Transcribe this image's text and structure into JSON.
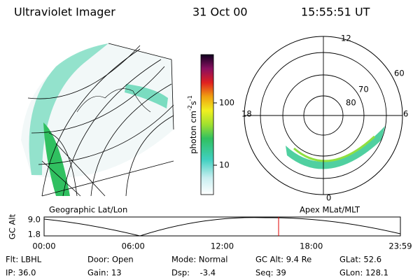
{
  "header": {
    "title": "Ultraviolet Imager",
    "date": "31 Oct 00",
    "time": "15:55:51 UT"
  },
  "colorbar": {
    "label": {
      "text": "photon cm",
      "exp1": "-2",
      "unit2": "s",
      "exp2": "-1"
    },
    "ticks": [
      "100",
      "10"
    ]
  },
  "polar": {
    "mlt_labels": {
      "top": "12",
      "left": "18",
      "right": "6",
      "bottom": "0"
    },
    "lat_labels": [
      "60",
      "70",
      "80"
    ]
  },
  "captions": {
    "left": "Geographic Lat/Lon",
    "right": "Apex MLat/MLT"
  },
  "altitude_plot": {
    "axis_label": "GC Alt",
    "y_ticks": [
      "9.0",
      "1.8"
    ],
    "x_ticks": [
      "00:00",
      "06:00",
      "12:00",
      "18:00",
      "23:59"
    ]
  },
  "footer": {
    "rows": [
      [
        "Flt: LBHL",
        "Door: Open",
        "Mode: Normal",
        "GC Alt: 9.4 Re",
        "GLat: 52.6"
      ],
      [
        "IP: 36.0",
        "Gain: 13",
        "Dsp:    -3.4",
        "Seq: 39",
        "GLon: 128.1"
      ]
    ]
  }
}
